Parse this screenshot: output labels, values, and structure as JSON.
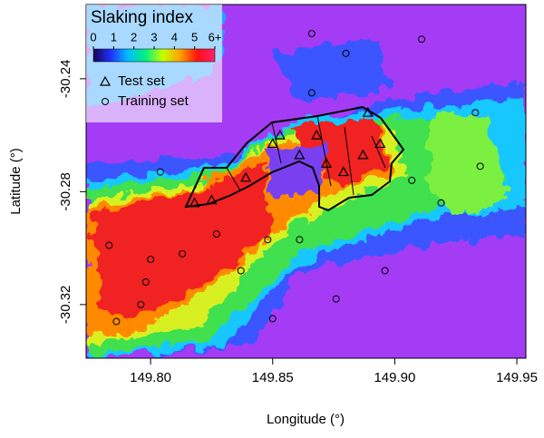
{
  "chart_data": {
    "type": "scatter",
    "xlabel": "Longitude (°)",
    "ylabel": "Latitude (°)",
    "xlim": [
      149.7736,
      149.9537
    ],
    "ylim": [
      -30.339,
      -30.2137
    ],
    "xticks": [
      {
        "value": 149.8,
        "label": "149.80"
      },
      149.85,
      {
        "value": 149.9,
        "label": "149.90"
      },
      149.95
    ],
    "yticks": [
      -30.32,
      -30.28,
      -30.24
    ],
    "legend": {
      "title": "Slaking index",
      "corner": "top-left"
    },
    "colorbar": {
      "lim": [
        0,
        6
      ],
      "ticks": [
        0,
        1,
        2,
        3,
        4,
        5,
        {
          "value": 6,
          "label": "6+"
        }
      ],
      "colors": [
        "#1a0050",
        "#2030ff",
        "#00c0ff",
        "#00f080",
        "#c8ff00",
        "#ffa000",
        "#ff1010",
        "#ff2070"
      ]
    },
    "series": [
      {
        "name": "Test set",
        "marker": "triangle",
        "color": "#000000",
        "x": [
          149.818,
          149.825,
          149.839,
          149.85,
          149.861,
          149.872,
          149.879,
          149.887,
          149.894,
          149.889,
          149.868,
          149.853
        ],
        "values": [
          -30.284,
          -30.283,
          -30.275,
          -30.263,
          -30.267,
          -30.27,
          -30.273,
          -30.267,
          -30.263,
          -30.252,
          -30.26,
          -30.26
        ]
      },
      {
        "name": "Training set",
        "marker": "circle",
        "color": "#000000",
        "x": [
          149.866,
          149.88,
          149.911,
          149.866,
          149.933,
          149.907,
          149.919,
          149.896,
          149.861,
          149.848,
          149.827,
          149.8,
          149.783,
          149.798,
          149.796,
          149.786,
          149.837,
          149.85,
          149.876,
          149.935,
          149.804,
          149.813
        ],
        "values": [
          -30.224,
          -30.231,
          -30.226,
          -30.245,
          -30.252,
          -30.276,
          -30.284,
          -30.308,
          -30.297,
          -30.297,
          -30.295,
          -30.304,
          -30.299,
          -30.312,
          -30.32,
          -30.326,
          -30.308,
          -30.325,
          -30.318,
          -30.271,
          -30.273,
          -30.302
        ]
      }
    ]
  }
}
